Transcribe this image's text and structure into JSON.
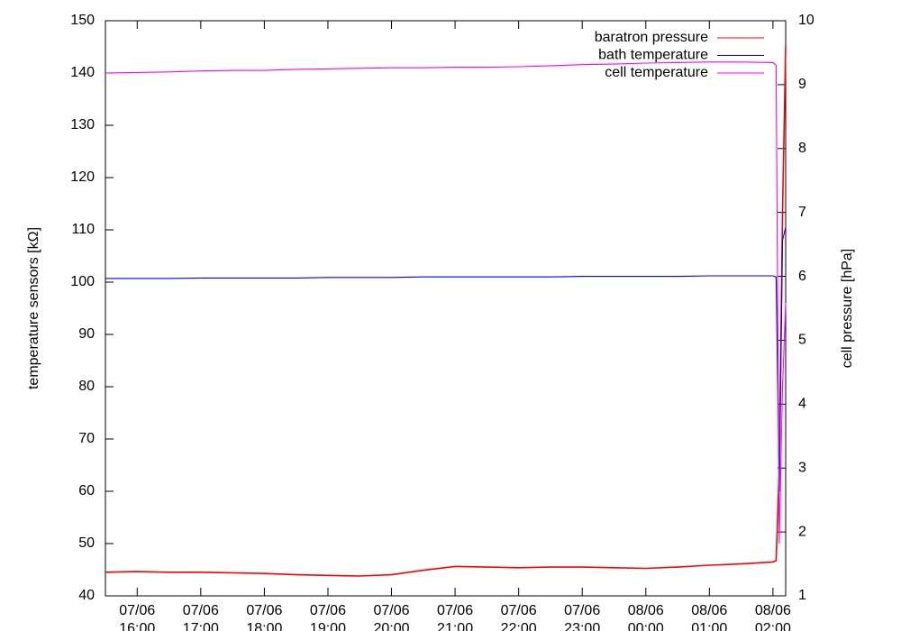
{
  "chart_data": {
    "type": "line",
    "ylabel": "temperature sensors [kΩ]",
    "y2label": "cell pressure [hPa]",
    "x": [
      "07/06 15:30",
      "07/06 16:00",
      "07/06 16:30",
      "07/06 17:00",
      "07/06 17:30",
      "07/06 18:00",
      "07/06 18:30",
      "07/06 19:00",
      "07/06 19:30",
      "07/06 20:00",
      "07/06 20:30",
      "07/06 21:00",
      "07/06 21:30",
      "07/06 22:00",
      "07/06 22:30",
      "07/06 23:00",
      "07/06 23:30",
      "08/06 00:00",
      "08/06 00:30",
      "08/06 01:00",
      "08/06 01:30",
      "08/06 02:00",
      "08/06 02:03",
      "08/06 02:06",
      "08/06 02:09",
      "08/06 02:12"
    ],
    "series": [
      {
        "name": "baratron pressure",
        "color": "#ff0000",
        "axis": "y2",
        "values": [
          1.37,
          1.38,
          1.37,
          1.37,
          1.36,
          1.35,
          1.33,
          1.32,
          1.31,
          1.33,
          1.4,
          1.46,
          1.45,
          1.44,
          1.45,
          1.45,
          1.44,
          1.43,
          1.45,
          1.48,
          1.5,
          1.53,
          1.55,
          3.0,
          7.0,
          9.6
        ]
      },
      {
        "name": "bath temperature",
        "color": "#0000ff",
        "values": [
          100.7,
          100.7,
          100.7,
          100.8,
          100.8,
          100.8,
          100.8,
          100.9,
          100.9,
          100.9,
          101.0,
          101.0,
          101.0,
          101.0,
          101.0,
          101.1,
          101.1,
          101.1,
          101.1,
          101.2,
          101.2,
          101.2,
          101.0,
          60,
          108,
          110.5
        ]
      },
      {
        "name": "cell temperature",
        "color": "#ff00ff",
        "values": [
          140.0,
          140.1,
          140.2,
          140.4,
          140.5,
          140.5,
          140.7,
          140.8,
          140.9,
          141.0,
          141.0,
          141.1,
          141.1,
          141.2,
          141.4,
          141.6,
          141.7,
          141.9,
          142.0,
          142.1,
          142.1,
          142.0,
          141.5,
          50,
          80,
          96
        ]
      }
    ],
    "xlim": [
      "07/06 15:30",
      "08/06 02:12"
    ],
    "xticks": [
      "07/06 16:00",
      "07/06 17:00",
      "07/06 18:00",
      "07/06 19:00",
      "07/06 20:00",
      "07/06 21:00",
      "07/06 22:00",
      "07/06 23:00",
      "08/06 00:00",
      "08/06 01:00",
      "08/06 02:00"
    ],
    "ylim": [
      40,
      150
    ],
    "yticks": [
      40,
      50,
      60,
      70,
      80,
      90,
      100,
      110,
      120,
      130,
      140,
      150
    ],
    "y2lim": [
      1,
      10
    ],
    "y2ticks": [
      1,
      2,
      3,
      4,
      5,
      6,
      7,
      8,
      9,
      10
    ],
    "legend": "top right",
    "grid": false
  }
}
